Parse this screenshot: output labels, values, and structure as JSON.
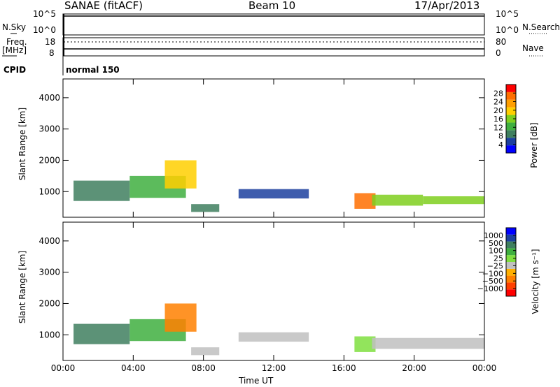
{
  "header": {
    "station": "SANAE (fitACF)",
    "beam": "Beam 10",
    "date": "17/Apr/2013"
  },
  "strip": {
    "nsky_label": "N.Sky",
    "nsky_ticks": [
      "10^5",
      "10^0"
    ],
    "nsearch_label": "N.Search",
    "nsearch_ticks": [
      "10^5",
      "10^0"
    ],
    "freq_label": "Freq.",
    "freq_unit": "[MHz]",
    "freq_ticks": [
      "18",
      "8"
    ],
    "nave_label": "Nave",
    "nave_ticks": [
      "80",
      "0"
    ],
    "cpid_label": "CPID",
    "cpid_value": "normal 150"
  },
  "colors": {
    "power": [
      "#0000ff",
      "#1c3f9f",
      "#3f7f5f",
      "#3faf3f",
      "#7fcf1f",
      "#ffcf00",
      "#ff9f00",
      "#ff6f00",
      "#ff0000"
    ],
    "velocity": [
      "#ff0000",
      "#ff4000",
      "#ff8000",
      "#ffb000",
      "#c0c0c0",
      "#7fdf3f",
      "#3faf3f",
      "#3f7f5f",
      "#1c3f9f",
      "#0000ff"
    ]
  },
  "chart_data": [
    {
      "type": "heatmap",
      "name_panel": "power",
      "xlabel": "Time UT",
      "ylabel": "Slant Range [km]",
      "x_ticks": [
        "00:00",
        "04:00",
        "08:00",
        "12:00",
        "16:00",
        "20:00",
        "00:00"
      ],
      "xlim_hours": [
        0,
        24
      ],
      "ylim_km": [
        180,
        4600
      ],
      "y_ticks": [
        1000,
        2000,
        3000,
        4000
      ],
      "colorbar_label": "Power [dB]",
      "colorbar_ticks": [
        "28",
        "24",
        "20",
        "16",
        "12",
        "8",
        "4"
      ],
      "colorbar_range": [
        0,
        30
      ],
      "regions": [
        {
          "t0": 0.6,
          "t1": 3.8,
          "r0": 700,
          "r1": 1350,
          "level": 2
        },
        {
          "t0": 3.8,
          "t1": 7.0,
          "r0": 800,
          "r1": 1500,
          "level": 3
        },
        {
          "t0": 5.8,
          "t1": 7.6,
          "r0": 1100,
          "r1": 2000,
          "level": 5
        },
        {
          "t0": 7.3,
          "t1": 8.9,
          "r0": 350,
          "r1": 600,
          "level": 2
        },
        {
          "t0": 10.0,
          "t1": 14.0,
          "r0": 780,
          "r1": 1080,
          "level": 1
        },
        {
          "t0": 16.6,
          "t1": 17.8,
          "r0": 450,
          "r1": 950,
          "level": 7
        },
        {
          "t0": 17.6,
          "t1": 20.5,
          "r0": 550,
          "r1": 900,
          "level": 4
        },
        {
          "t0": 20.5,
          "t1": 24.0,
          "r0": 600,
          "r1": 850,
          "level": 4
        }
      ]
    },
    {
      "type": "heatmap",
      "name_panel": "velocity",
      "xlabel": "Time UT",
      "ylabel": "Slant Range [km]",
      "x_ticks": [
        "00:00",
        "04:00",
        "08:00",
        "12:00",
        "16:00",
        "20:00",
        "00:00"
      ],
      "xlim_hours": [
        0,
        24
      ],
      "ylim_km": [
        180,
        4600
      ],
      "y_ticks": [
        1000,
        2000,
        3000,
        4000
      ],
      "colorbar_label": "Velocity [m s⁻¹]",
      "colorbar_ticks": [
        "1000",
        "500",
        "100",
        "25",
        "−25",
        "−100",
        "−500",
        "−1000"
      ],
      "regions": [
        {
          "t0": 0.6,
          "t1": 3.8,
          "r0": 700,
          "r1": 1350,
          "level": 7
        },
        {
          "t0": 3.8,
          "t1": 7.0,
          "r0": 800,
          "r1": 1500,
          "level": 6
        },
        {
          "t0": 5.8,
          "t1": 7.6,
          "r0": 1100,
          "r1": 2000,
          "level": 2
        },
        {
          "t0": 7.3,
          "t1": 8.9,
          "r0": 350,
          "r1": 600,
          "level": 4
        },
        {
          "t0": 10.0,
          "t1": 14.0,
          "r0": 780,
          "r1": 1080,
          "level": 4
        },
        {
          "t0": 16.6,
          "t1": 17.8,
          "r0": 450,
          "r1": 950,
          "level": 5
        },
        {
          "t0": 17.6,
          "t1": 24.0,
          "r0": 550,
          "r1": 900,
          "level": 4
        }
      ]
    }
  ]
}
